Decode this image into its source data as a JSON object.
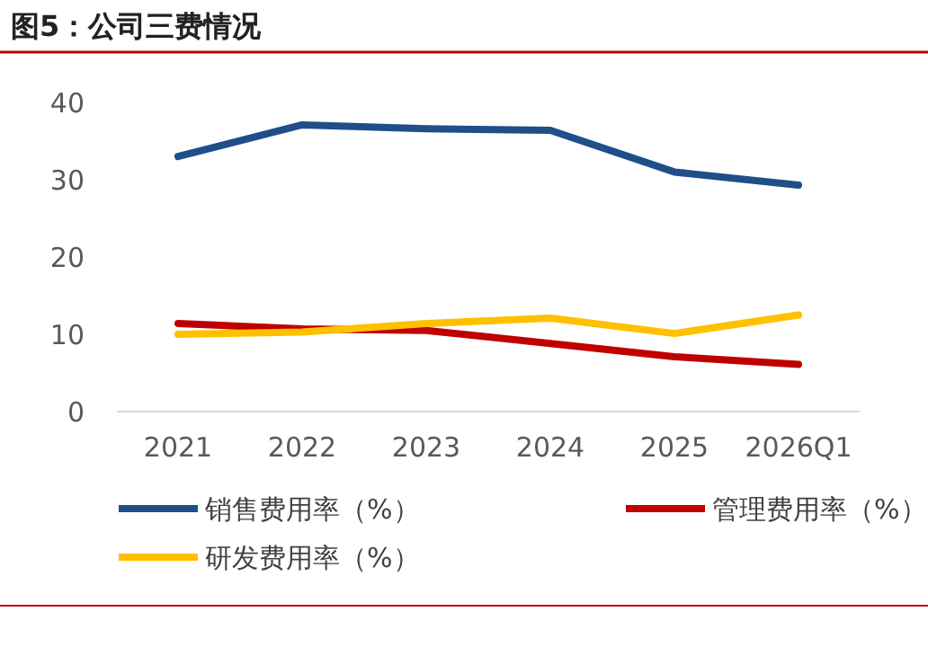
{
  "chart_data": {
    "type": "line",
    "title": "图5：公司三费情况",
    "categories": [
      "2021",
      "2022",
      "2023",
      "2024",
      "2025",
      "2026Q1"
    ],
    "series": [
      {
        "name": "销售费用率（%）",
        "color": "#1f4e89",
        "values": [
          33.0,
          37.1,
          36.6,
          36.4,
          31.0,
          29.3
        ]
      },
      {
        "name": "管理费用率（%）",
        "color": "#c00000",
        "values": [
          11.4,
          10.7,
          10.5,
          8.8,
          7.1,
          6.1
        ]
      },
      {
        "name": "研发费用率（%）",
        "color": "#ffc000",
        "values": [
          10.0,
          10.3,
          11.4,
          12.1,
          10.1,
          12.5
        ]
      }
    ],
    "ylim": [
      0,
      40
    ],
    "yticks": [
      0,
      10,
      20,
      30,
      40
    ],
    "grid": false,
    "legend": "bottom",
    "marker": "none",
    "line_style": "solid"
  }
}
